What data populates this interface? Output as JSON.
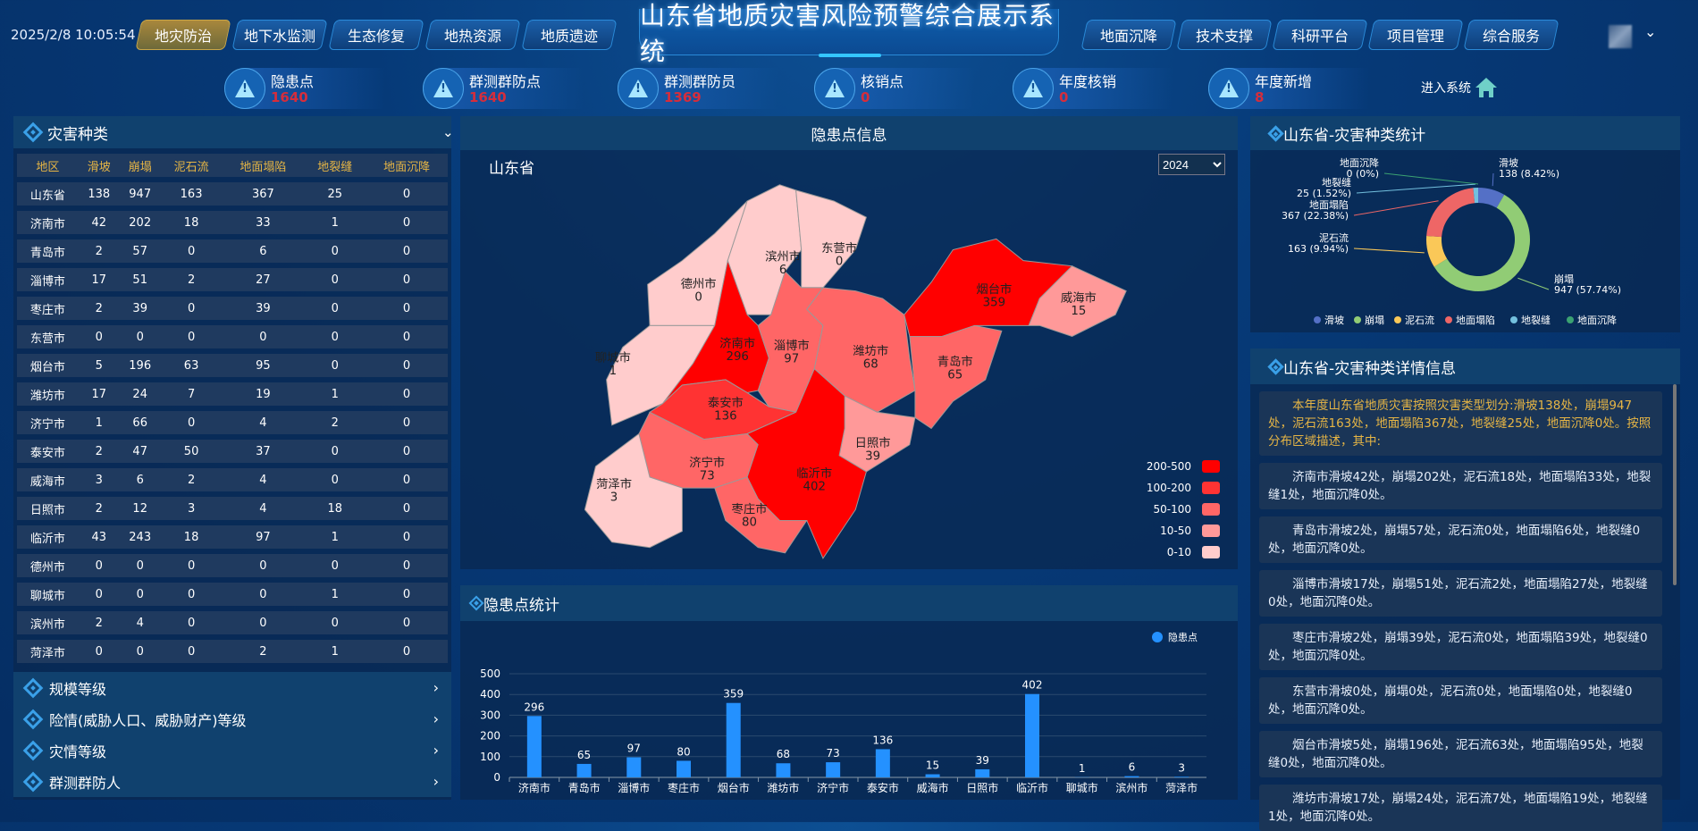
{
  "header": {
    "datetime": "2025/2/8 10:05:54",
    "title": "山东省地质灾害风险预警综合展示系统",
    "left_tabs": [
      "地灾防治",
      "地下水监测",
      "生态修复",
      "地热资源",
      "地质遗迹"
    ],
    "active_tab": "地灾防治",
    "right_tabs": [
      "地面沉降",
      "技术支撑",
      "科研平台",
      "项目管理",
      "综合服务"
    ],
    "user_menu_icon": "chevron-down-icon"
  },
  "stats": [
    {
      "label": "隐患点",
      "value": "1640"
    },
    {
      "label": "群测群防点",
      "value": "1640"
    },
    {
      "label": "群测群防员",
      "value": "1369"
    },
    {
      "label": "核销点",
      "value": "0"
    },
    {
      "label": "年度核销",
      "value": "0"
    },
    {
      "label": "年度新增",
      "value": "8"
    }
  ],
  "enter_system": "进入系统",
  "left": {
    "title": "灾害种类",
    "columns": [
      "地区",
      "滑坡",
      "崩塌",
      "泥石流",
      "地面塌陷",
      "地裂缝",
      "地面沉降"
    ],
    "rows": [
      [
        "山东省",
        "138",
        "947",
        "163",
        "367",
        "25",
        "0"
      ],
      [
        "济南市",
        "42",
        "202",
        "18",
        "33",
        "1",
        "0"
      ],
      [
        "青岛市",
        "2",
        "57",
        "0",
        "6",
        "0",
        "0"
      ],
      [
        "淄博市",
        "17",
        "51",
        "2",
        "27",
        "0",
        "0"
      ],
      [
        "枣庄市",
        "2",
        "39",
        "0",
        "39",
        "0",
        "0"
      ],
      [
        "东营市",
        "0",
        "0",
        "0",
        "0",
        "0",
        "0"
      ],
      [
        "烟台市",
        "5",
        "196",
        "63",
        "95",
        "0",
        "0"
      ],
      [
        "潍坊市",
        "17",
        "24",
        "7",
        "19",
        "1",
        "0"
      ],
      [
        "济宁市",
        "1",
        "66",
        "0",
        "4",
        "2",
        "0"
      ],
      [
        "泰安市",
        "2",
        "47",
        "50",
        "37",
        "0",
        "0"
      ],
      [
        "威海市",
        "3",
        "6",
        "2",
        "4",
        "0",
        "0"
      ],
      [
        "日照市",
        "2",
        "12",
        "3",
        "4",
        "18",
        "0"
      ],
      [
        "临沂市",
        "43",
        "243",
        "18",
        "97",
        "1",
        "0"
      ],
      [
        "德州市",
        "0",
        "0",
        "0",
        "0",
        "0",
        "0"
      ],
      [
        "聊城市",
        "0",
        "0",
        "0",
        "0",
        "1",
        "0"
      ],
      [
        "滨州市",
        "2",
        "4",
        "0",
        "0",
        "0",
        "0"
      ],
      [
        "菏泽市",
        "0",
        "0",
        "0",
        "2",
        "1",
        "0"
      ]
    ],
    "sections": [
      "规模等级",
      "险情(威胁人口、威胁财产)等级",
      "灾情等级",
      "群测群防人"
    ]
  },
  "map": {
    "title": "隐患点信息",
    "region": "山东省",
    "year": "2024",
    "cities": [
      {
        "name": "德州市",
        "value": 0
      },
      {
        "name": "滨州市",
        "value": 6
      },
      {
        "name": "东营市",
        "value": 0
      },
      {
        "name": "聊城市",
        "value": 1
      },
      {
        "name": "济南市",
        "value": 296
      },
      {
        "name": "淄博市",
        "value": 97
      },
      {
        "name": "潍坊市",
        "value": 68
      },
      {
        "name": "烟台市",
        "value": 359
      },
      {
        "name": "威海市",
        "value": 15
      },
      {
        "name": "青岛市",
        "value": 65
      },
      {
        "name": "泰安市",
        "value": 136
      },
      {
        "name": "日照市",
        "value": 39
      },
      {
        "name": "济宁市",
        "value": 73
      },
      {
        "name": "临沂市",
        "value": 402
      },
      {
        "name": "枣庄市",
        "value": 80
      },
      {
        "name": "菏泽市",
        "value": 3
      }
    ],
    "legend": [
      {
        "label": "200-500",
        "color": "#ff0000",
        "min": 200
      },
      {
        "label": "100-200",
        "color": "#ff3333",
        "min": 100
      },
      {
        "label": "50-100",
        "color": "#ff6666",
        "min": 50
      },
      {
        "label": "10-50",
        "color": "#ff9999",
        "min": 10
      },
      {
        "label": "0-10",
        "color": "#ffcccc",
        "min": 0
      }
    ]
  },
  "chart_data": [
    {
      "type": "bar",
      "title": "隐患点统计",
      "legend": [
        "隐患点"
      ],
      "color": "#2491ff",
      "ylim": [
        0,
        500
      ],
      "yticks": [
        0,
        100,
        200,
        300,
        400,
        500
      ],
      "categories": [
        "济南市",
        "青岛市",
        "淄博市",
        "枣庄市",
        "烟台市",
        "潍坊市",
        "济宁市",
        "泰安市",
        "威海市",
        "日照市",
        "临沂市",
        "聊城市",
        "滨州市",
        "菏泽市"
      ],
      "values": [
        296,
        65,
        97,
        80,
        359,
        68,
        73,
        136,
        15,
        39,
        402,
        1,
        6,
        3
      ]
    },
    {
      "type": "pie",
      "title": "山东省-灾害种类统计",
      "categories": [
        "滑坡",
        "崩塌",
        "泥石流",
        "地面塌陷",
        "地裂缝",
        "地面沉降"
      ],
      "values": [
        138,
        947,
        163,
        367,
        25,
        0
      ],
      "percents": [
        "8.42%",
        "57.74%",
        "9.94%",
        "22.38%",
        "1.52%",
        "0%"
      ],
      "colors": [
        "#5470c6",
        "#91cc75",
        "#fac858",
        "#ee6666",
        "#73c0de",
        "#3ba272"
      ],
      "legend_position": "bottom"
    }
  ],
  "details": {
    "title": "山东省-灾害种类详情信息",
    "paragraphs": [
      "本年度山东省地质灾害按照灾害类型划分:滑坡138处，崩塌947处，泥石流163处，地面塌陷367处，地裂缝25处，地面沉降0处。按照分布区域描述，其中:",
      "济南市滑坡42处，崩塌202处，泥石流18处，地面塌陷33处，地裂缝1处，地面沉降0处。",
      "青岛市滑坡2处，崩塌57处，泥石流0处，地面塌陷6处，地裂缝0处，地面沉降0处。",
      "淄博市滑坡17处，崩塌51处，泥石流2处，地面塌陷27处，地裂缝0处，地面沉降0处。",
      "枣庄市滑坡2处，崩塌39处，泥石流0处，地面塌陷39处，地裂缝0处，地面沉降0处。",
      "东营市滑坡0处，崩塌0处，泥石流0处，地面塌陷0处，地裂缝0处，地面沉降0处。",
      "烟台市滑坡5处，崩塌196处，泥石流63处，地面塌陷95处，地裂缝0处，地面沉降0处。",
      "潍坊市滑坡17处，崩塌24处，泥石流7处，地面塌陷19处，地裂缝1处，地面沉降0处。"
    ]
  }
}
